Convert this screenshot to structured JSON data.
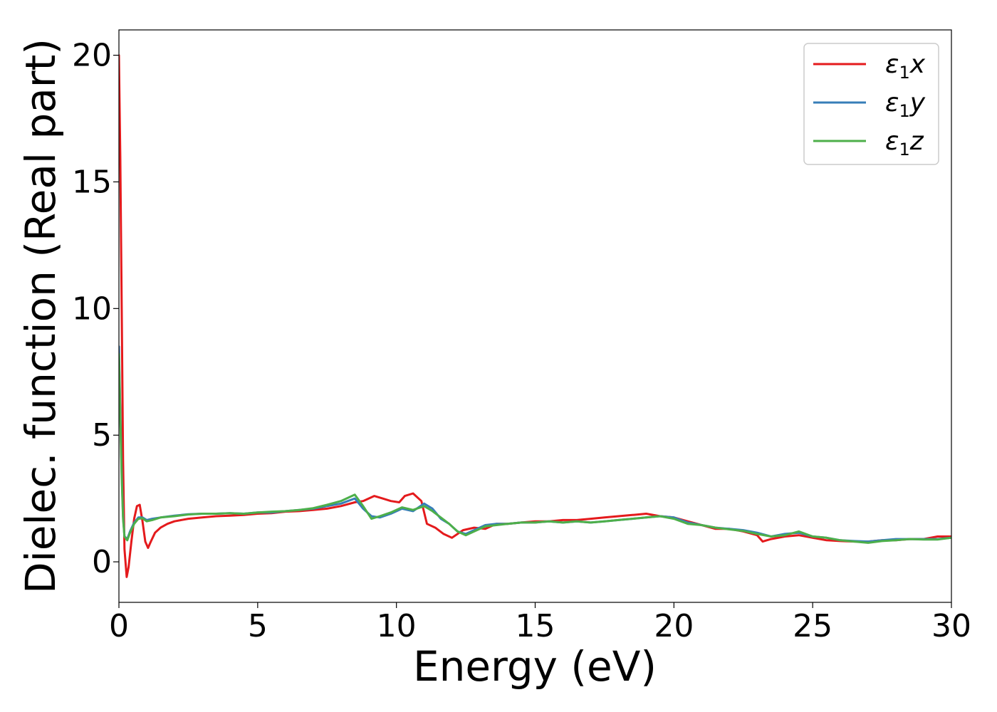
{
  "chart_data": {
    "type": "line",
    "title": "",
    "xlabel": "Energy (eV)",
    "ylabel": "Dielec. function (Real part)",
    "xlim": [
      0,
      30
    ],
    "ylim": [
      -1.6,
      21
    ],
    "xticks": [
      0,
      5,
      10,
      15,
      20,
      25,
      30
    ],
    "yticks": [
      0,
      5,
      10,
      15,
      20
    ],
    "grid": false,
    "legend_position": "top-right",
    "series": [
      {
        "name": "ε1x",
        "legend": {
          "base": "ε",
          "sub": "1",
          "var": "x"
        },
        "color": "#e41a1c",
        "x": [
          0,
          0.05,
          0.1,
          0.15,
          0.2,
          0.28,
          0.35,
          0.45,
          0.55,
          0.65,
          0.75,
          0.85,
          0.95,
          1.05,
          1.15,
          1.3,
          1.5,
          1.75,
          2,
          2.5,
          3,
          3.5,
          4,
          4.5,
          5,
          5.5,
          6,
          6.5,
          7,
          7.5,
          8,
          8.5,
          8.8,
          9.2,
          9.5,
          9.8,
          10.1,
          10.3,
          10.6,
          10.9,
          11.1,
          11.4,
          11.7,
          12,
          12.4,
          12.8,
          13.2,
          13.6,
          14,
          14.5,
          15,
          15.5,
          16,
          16.5,
          17,
          17.5,
          18,
          18.5,
          19,
          19.5,
          20,
          20.5,
          21,
          21.5,
          22,
          22.5,
          23,
          23.2,
          23.5,
          24,
          24.5,
          25,
          25.5,
          26,
          26.5,
          27,
          27.5,
          28,
          28.5,
          29,
          29.5,
          30
        ],
        "y": [
          20,
          16,
          10,
          4,
          0.5,
          -0.6,
          -0.2,
          0.8,
          1.7,
          2.2,
          2.25,
          1.6,
          0.8,
          0.55,
          0.8,
          1.15,
          1.35,
          1.5,
          1.6,
          1.7,
          1.75,
          1.8,
          1.82,
          1.85,
          1.9,
          1.92,
          1.98,
          2.0,
          2.05,
          2.1,
          2.2,
          2.35,
          2.4,
          2.6,
          2.5,
          2.4,
          2.35,
          2.6,
          2.7,
          2.4,
          1.5,
          1.35,
          1.1,
          0.95,
          1.25,
          1.35,
          1.3,
          1.5,
          1.5,
          1.55,
          1.6,
          1.6,
          1.65,
          1.65,
          1.7,
          1.75,
          1.8,
          1.85,
          1.9,
          1.8,
          1.75,
          1.6,
          1.45,
          1.3,
          1.3,
          1.2,
          1.05,
          0.8,
          0.9,
          1.0,
          1.05,
          0.95,
          0.85,
          0.82,
          0.8,
          0.8,
          0.85,
          0.85,
          0.9,
          0.9,
          1.0,
          1.0
        ]
      },
      {
        "name": "ε1y",
        "legend": {
          "base": "ε",
          "sub": "1",
          "var": "y"
        },
        "color": "#377eb8",
        "x": [
          0,
          0.05,
          0.1,
          0.15,
          0.2,
          0.3,
          0.4,
          0.55,
          0.7,
          0.85,
          1.0,
          1.2,
          1.5,
          2,
          2.5,
          3,
          3.5,
          4,
          4.5,
          5,
          5.5,
          6,
          6.5,
          7,
          7.5,
          8,
          8.5,
          8.8,
          9.1,
          9.4,
          9.8,
          10.2,
          10.6,
          11.0,
          11.3,
          11.6,
          11.9,
          12.2,
          12.5,
          12.8,
          13.2,
          13.6,
          14,
          14.5,
          15,
          15.5,
          16,
          16.5,
          17,
          17.5,
          18,
          18.5,
          19,
          19.5,
          20,
          20.5,
          21,
          21.5,
          22,
          22.5,
          23,
          23.5,
          24,
          24.5,
          25,
          25.5,
          26,
          26.5,
          27,
          27.5,
          28,
          28.5,
          29,
          29.5,
          30
        ],
        "y": [
          8.5,
          6,
          3.5,
          1.8,
          1.0,
          0.9,
          1.2,
          1.55,
          1.75,
          1.75,
          1.65,
          1.7,
          1.75,
          1.82,
          1.88,
          1.9,
          1.9,
          1.92,
          1.9,
          1.95,
          1.95,
          2.0,
          2.05,
          2.1,
          2.2,
          2.3,
          2.5,
          2.1,
          1.8,
          1.75,
          1.9,
          2.1,
          2.0,
          2.3,
          2.1,
          1.7,
          1.5,
          1.2,
          1.1,
          1.25,
          1.45,
          1.5,
          1.5,
          1.55,
          1.55,
          1.6,
          1.55,
          1.6,
          1.55,
          1.6,
          1.65,
          1.7,
          1.75,
          1.8,
          1.75,
          1.55,
          1.45,
          1.35,
          1.3,
          1.25,
          1.15,
          1.0,
          1.1,
          1.15,
          1.0,
          0.95,
          0.85,
          0.82,
          0.8,
          0.85,
          0.9,
          0.9,
          0.9,
          0.9,
          0.95
        ]
      },
      {
        "name": "ε1z",
        "legend": {
          "base": "ε",
          "sub": "1",
          "var": "z"
        },
        "color": "#4daf4a",
        "x": [
          0,
          0.05,
          0.1,
          0.15,
          0.2,
          0.3,
          0.4,
          0.55,
          0.7,
          0.85,
          1.0,
          1.2,
          1.5,
          2,
          2.5,
          3,
          3.5,
          4,
          4.5,
          5,
          5.5,
          6,
          6.5,
          7,
          7.5,
          8,
          8.5,
          8.8,
          9.1,
          9.4,
          9.8,
          10.2,
          10.6,
          11.0,
          11.3,
          11.6,
          11.9,
          12.2,
          12.5,
          12.8,
          13.2,
          13.6,
          14,
          14.5,
          15,
          15.5,
          16,
          16.5,
          17,
          17.5,
          18,
          18.5,
          19,
          19.5,
          20,
          20.5,
          21,
          21.5,
          22,
          22.5,
          23,
          23.5,
          24,
          24.5,
          25,
          25.5,
          26,
          26.5,
          27,
          27.5,
          28,
          28.5,
          29,
          29.5,
          30
        ],
        "y": [
          8.2,
          5.8,
          3.3,
          1.7,
          1.0,
          0.85,
          1.15,
          1.5,
          1.7,
          1.72,
          1.6,
          1.65,
          1.75,
          1.8,
          1.87,
          1.9,
          1.9,
          1.92,
          1.9,
          1.95,
          1.98,
          2.0,
          2.05,
          2.12,
          2.25,
          2.4,
          2.65,
          2.2,
          1.7,
          1.8,
          1.95,
          2.15,
          2.05,
          2.2,
          2.0,
          1.75,
          1.5,
          1.2,
          1.05,
          1.2,
          1.4,
          1.45,
          1.5,
          1.55,
          1.55,
          1.6,
          1.55,
          1.6,
          1.55,
          1.6,
          1.65,
          1.7,
          1.75,
          1.8,
          1.7,
          1.5,
          1.45,
          1.35,
          1.28,
          1.22,
          1.1,
          1.0,
          1.05,
          1.2,
          1.0,
          0.95,
          0.85,
          0.8,
          0.75,
          0.82,
          0.85,
          0.9,
          0.88,
          0.88,
          0.95
        ]
      }
    ]
  }
}
